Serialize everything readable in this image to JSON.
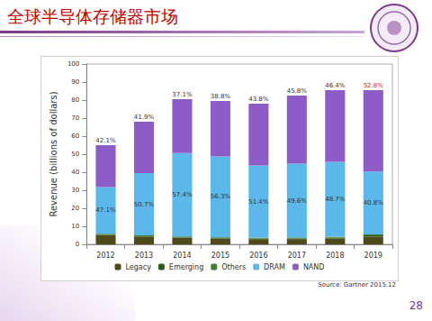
{
  "slide": {
    "title": "全球半导体存储器市场",
    "source": "Source: Gartner 2015.12",
    "page_number": "28"
  },
  "chart_data": {
    "type": "bar",
    "stacked": true,
    "y_label": "Revenue (billions of dollars)",
    "categories": [
      "2012",
      "2013",
      "2014",
      "2015",
      "2016",
      "2017",
      "2018",
      "2019"
    ],
    "series": [
      {
        "name": "Legacy",
        "color": "#4e4a1c",
        "values": [
          5.1,
          4.2,
          3.6,
          3.1,
          2.9,
          2.9,
          3.2,
          4.2
        ]
      },
      {
        "name": "Emerging",
        "color": "#2f5a1e",
        "values": [
          0.3,
          0.3,
          0.3,
          0.3,
          0.3,
          0.4,
          0.5,
          0.8
        ]
      },
      {
        "name": "Others",
        "color": "#3f7f2f",
        "values": [
          0.5,
          0.5,
          0.5,
          0.5,
          0.5,
          0.5,
          0.5,
          0.5
        ]
      },
      {
        "name": "DRAM",
        "color": "#5cb8ea",
        "values": [
          25.9,
          34.5,
          46.2,
          44.8,
          40.1,
          40.9,
          41.6,
          34.9
        ]
      },
      {
        "name": "NAND",
        "color": "#8e5cc7",
        "values": [
          23.2,
          28.5,
          29.9,
          30.8,
          34.2,
          37.8,
          39.7,
          45.1
        ]
      }
    ],
    "annotations": [
      {
        "series": "DRAM",
        "labels": [
          "47.1%",
          "50.7%",
          "57.4%",
          "56.3%",
          "51.4%",
          "49.6%",
          "48.7%",
          "40.8%"
        ],
        "colors": [
          "#333333",
          "#333333",
          "#333333",
          "#333333",
          "#333333",
          "#333333",
          "#333333",
          "#333333"
        ]
      },
      {
        "series": "NAND",
        "labels": [
          "42.1%",
          "41.9%",
          "37.1%",
          "38.8%",
          "43.8%",
          "45.8%",
          "46.4%",
          "52.8%"
        ],
        "colors": [
          "#333333",
          "#333333",
          "#333333",
          "#333333",
          "#333333",
          "#333333",
          "#333333",
          "#e02020"
        ]
      }
    ],
    "ylim": [
      0,
      100
    ],
    "yticks": [
      0,
      10,
      20,
      30,
      40,
      50,
      60,
      70,
      80,
      90,
      100
    ],
    "grid": false,
    "legend": "bottom"
  }
}
